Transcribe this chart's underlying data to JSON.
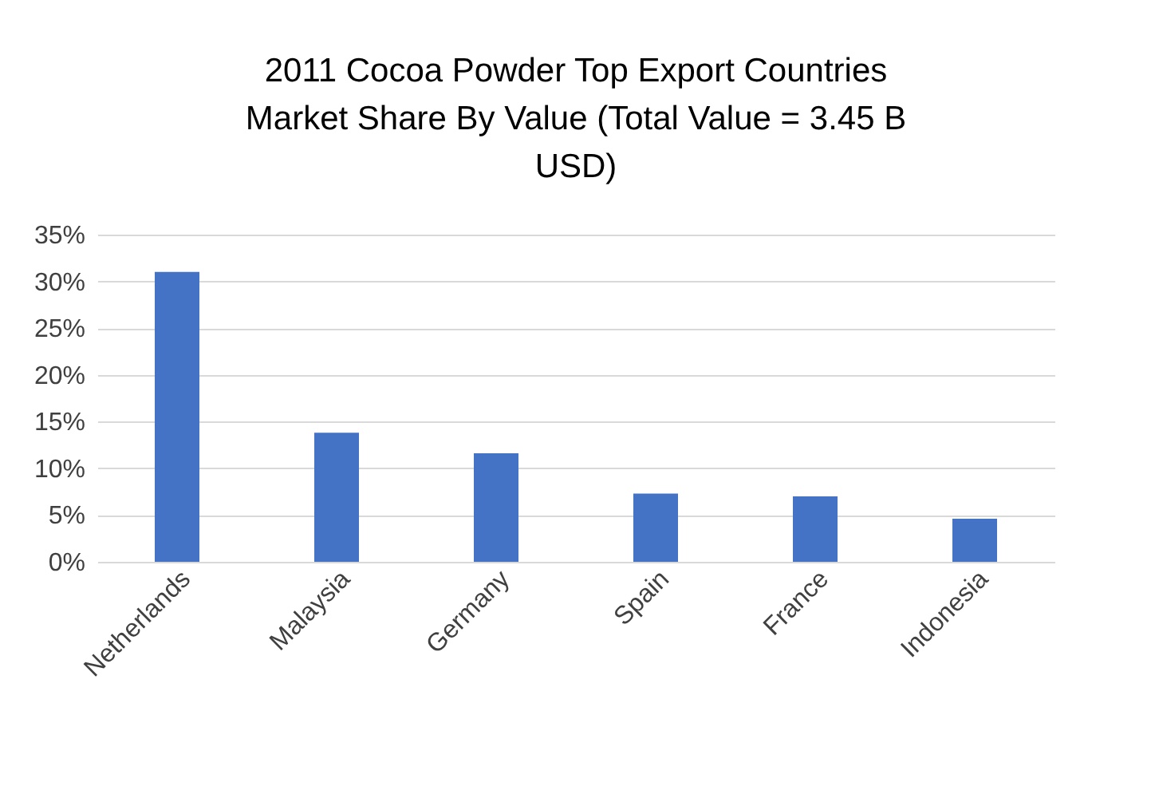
{
  "chart_data": {
    "type": "bar",
    "title": "2011 Cocoa Powder Top Export Countries Market Share By Value (Total Value = 3.45 B USD)",
    "categories": [
      "Netherlands",
      "Malaysia",
      "Germany",
      "Spain",
      "France",
      "Indonesia"
    ],
    "series": [
      {
        "color": "#4472c4",
        "values": [
          31.0,
          13.8,
          11.6,
          7.3,
          7.0,
          4.6
        ]
      }
    ],
    "ylim": [
      0,
      35
    ],
    "yticks": [
      {
        "value": 0,
        "label": "0%"
      },
      {
        "value": 5,
        "label": "5%"
      },
      {
        "value": 10,
        "label": "10%"
      },
      {
        "value": 15,
        "label": "15%"
      },
      {
        "value": 20,
        "label": "20%"
      },
      {
        "value": 25,
        "label": "25%"
      },
      {
        "value": 30,
        "label": "30%"
      },
      {
        "value": 35,
        "label": "35%"
      }
    ],
    "grid": "y"
  }
}
